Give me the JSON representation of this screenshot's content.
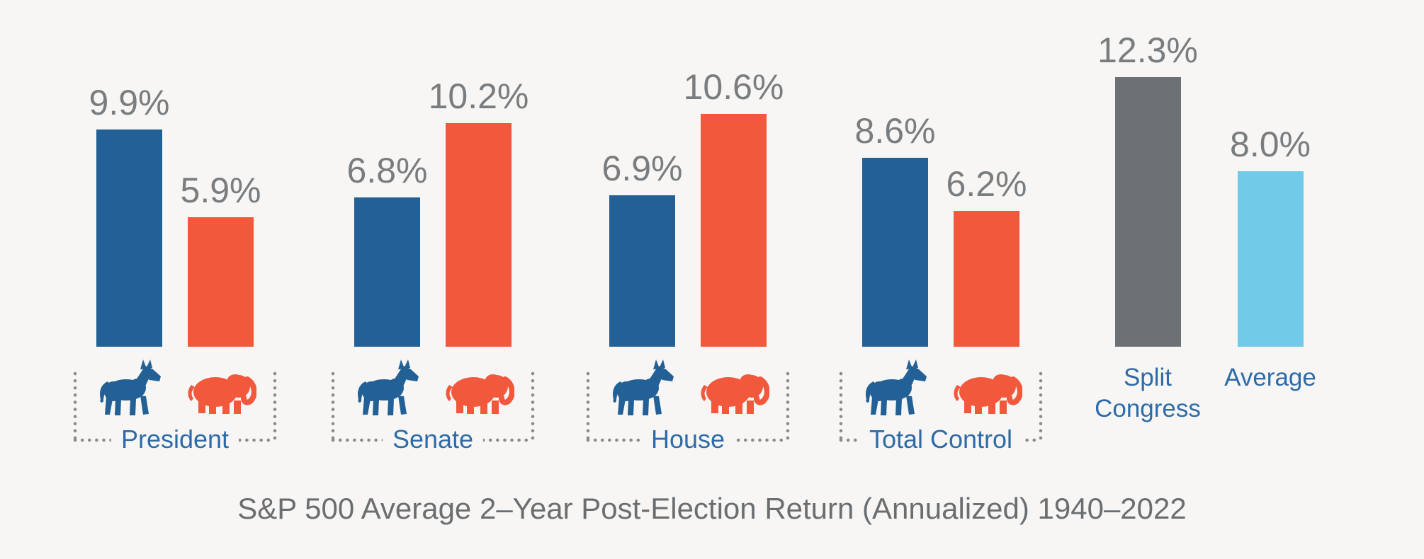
{
  "caption": "S&P 500 Average 2–Year Post-Election Return (Annualized) 1940–2022",
  "colors": {
    "background": "#F7F6F4",
    "democrat": "#236095",
    "republican": "#F2583C",
    "split_congress": "#6E7173",
    "average": "#70CBE9",
    "value_label": "#7A7D7F",
    "group_label": "#2E6BA8",
    "caption": "#6B6E70",
    "dots": "#8B8B8B"
  },
  "icons": {
    "democrat": "donkey-icon",
    "republican": "elephant-icon"
  },
  "chart_data": {
    "type": "bar",
    "title": "S&P 500 Average 2–Year Post-Election Return (Annualized) 1940–2022",
    "unit": "%",
    "ylim": [
      0,
      13
    ],
    "grid": false,
    "legend_position": "none",
    "groups": [
      {
        "kind": "pair",
        "category": "President",
        "bars": [
          {
            "party": "Democrat",
            "icon": "donkey",
            "value": 9.9,
            "label": "9.9%",
            "color_key": "democrat"
          },
          {
            "party": "Republican",
            "icon": "elephant",
            "value": 5.9,
            "label": "5.9%",
            "color_key": "republican"
          }
        ]
      },
      {
        "kind": "pair",
        "category": "Senate",
        "bars": [
          {
            "party": "Democrat",
            "icon": "donkey",
            "value": 6.8,
            "label": "6.8%",
            "color_key": "democrat"
          },
          {
            "party": "Republican",
            "icon": "elephant",
            "value": 10.2,
            "label": "10.2%",
            "color_key": "republican"
          }
        ]
      },
      {
        "kind": "pair",
        "category": "House",
        "bars": [
          {
            "party": "Democrat",
            "icon": "donkey",
            "value": 6.9,
            "label": "6.9%",
            "color_key": "democrat"
          },
          {
            "party": "Republican",
            "icon": "elephant",
            "value": 10.6,
            "label": "10.6%",
            "color_key": "republican"
          }
        ]
      },
      {
        "kind": "pair",
        "category": "Total Control",
        "bars": [
          {
            "party": "Democrat",
            "icon": "donkey",
            "value": 8.6,
            "label": "8.6%",
            "color_key": "democrat"
          },
          {
            "party": "Republican",
            "icon": "elephant",
            "value": 6.2,
            "label": "6.2%",
            "color_key": "republican"
          }
        ]
      },
      {
        "kind": "single",
        "category": "Split Congress",
        "category_lines": [
          "Split",
          "Congress"
        ],
        "bars": [
          {
            "party": "Split Congress",
            "value": 12.3,
            "label": "12.3%",
            "color_key": "split_congress"
          }
        ]
      },
      {
        "kind": "single",
        "category": "Average",
        "category_lines": [
          "Average"
        ],
        "bars": [
          {
            "party": "Average",
            "value": 8.0,
            "label": "8.0%",
            "color_key": "average"
          }
        ]
      }
    ]
  }
}
